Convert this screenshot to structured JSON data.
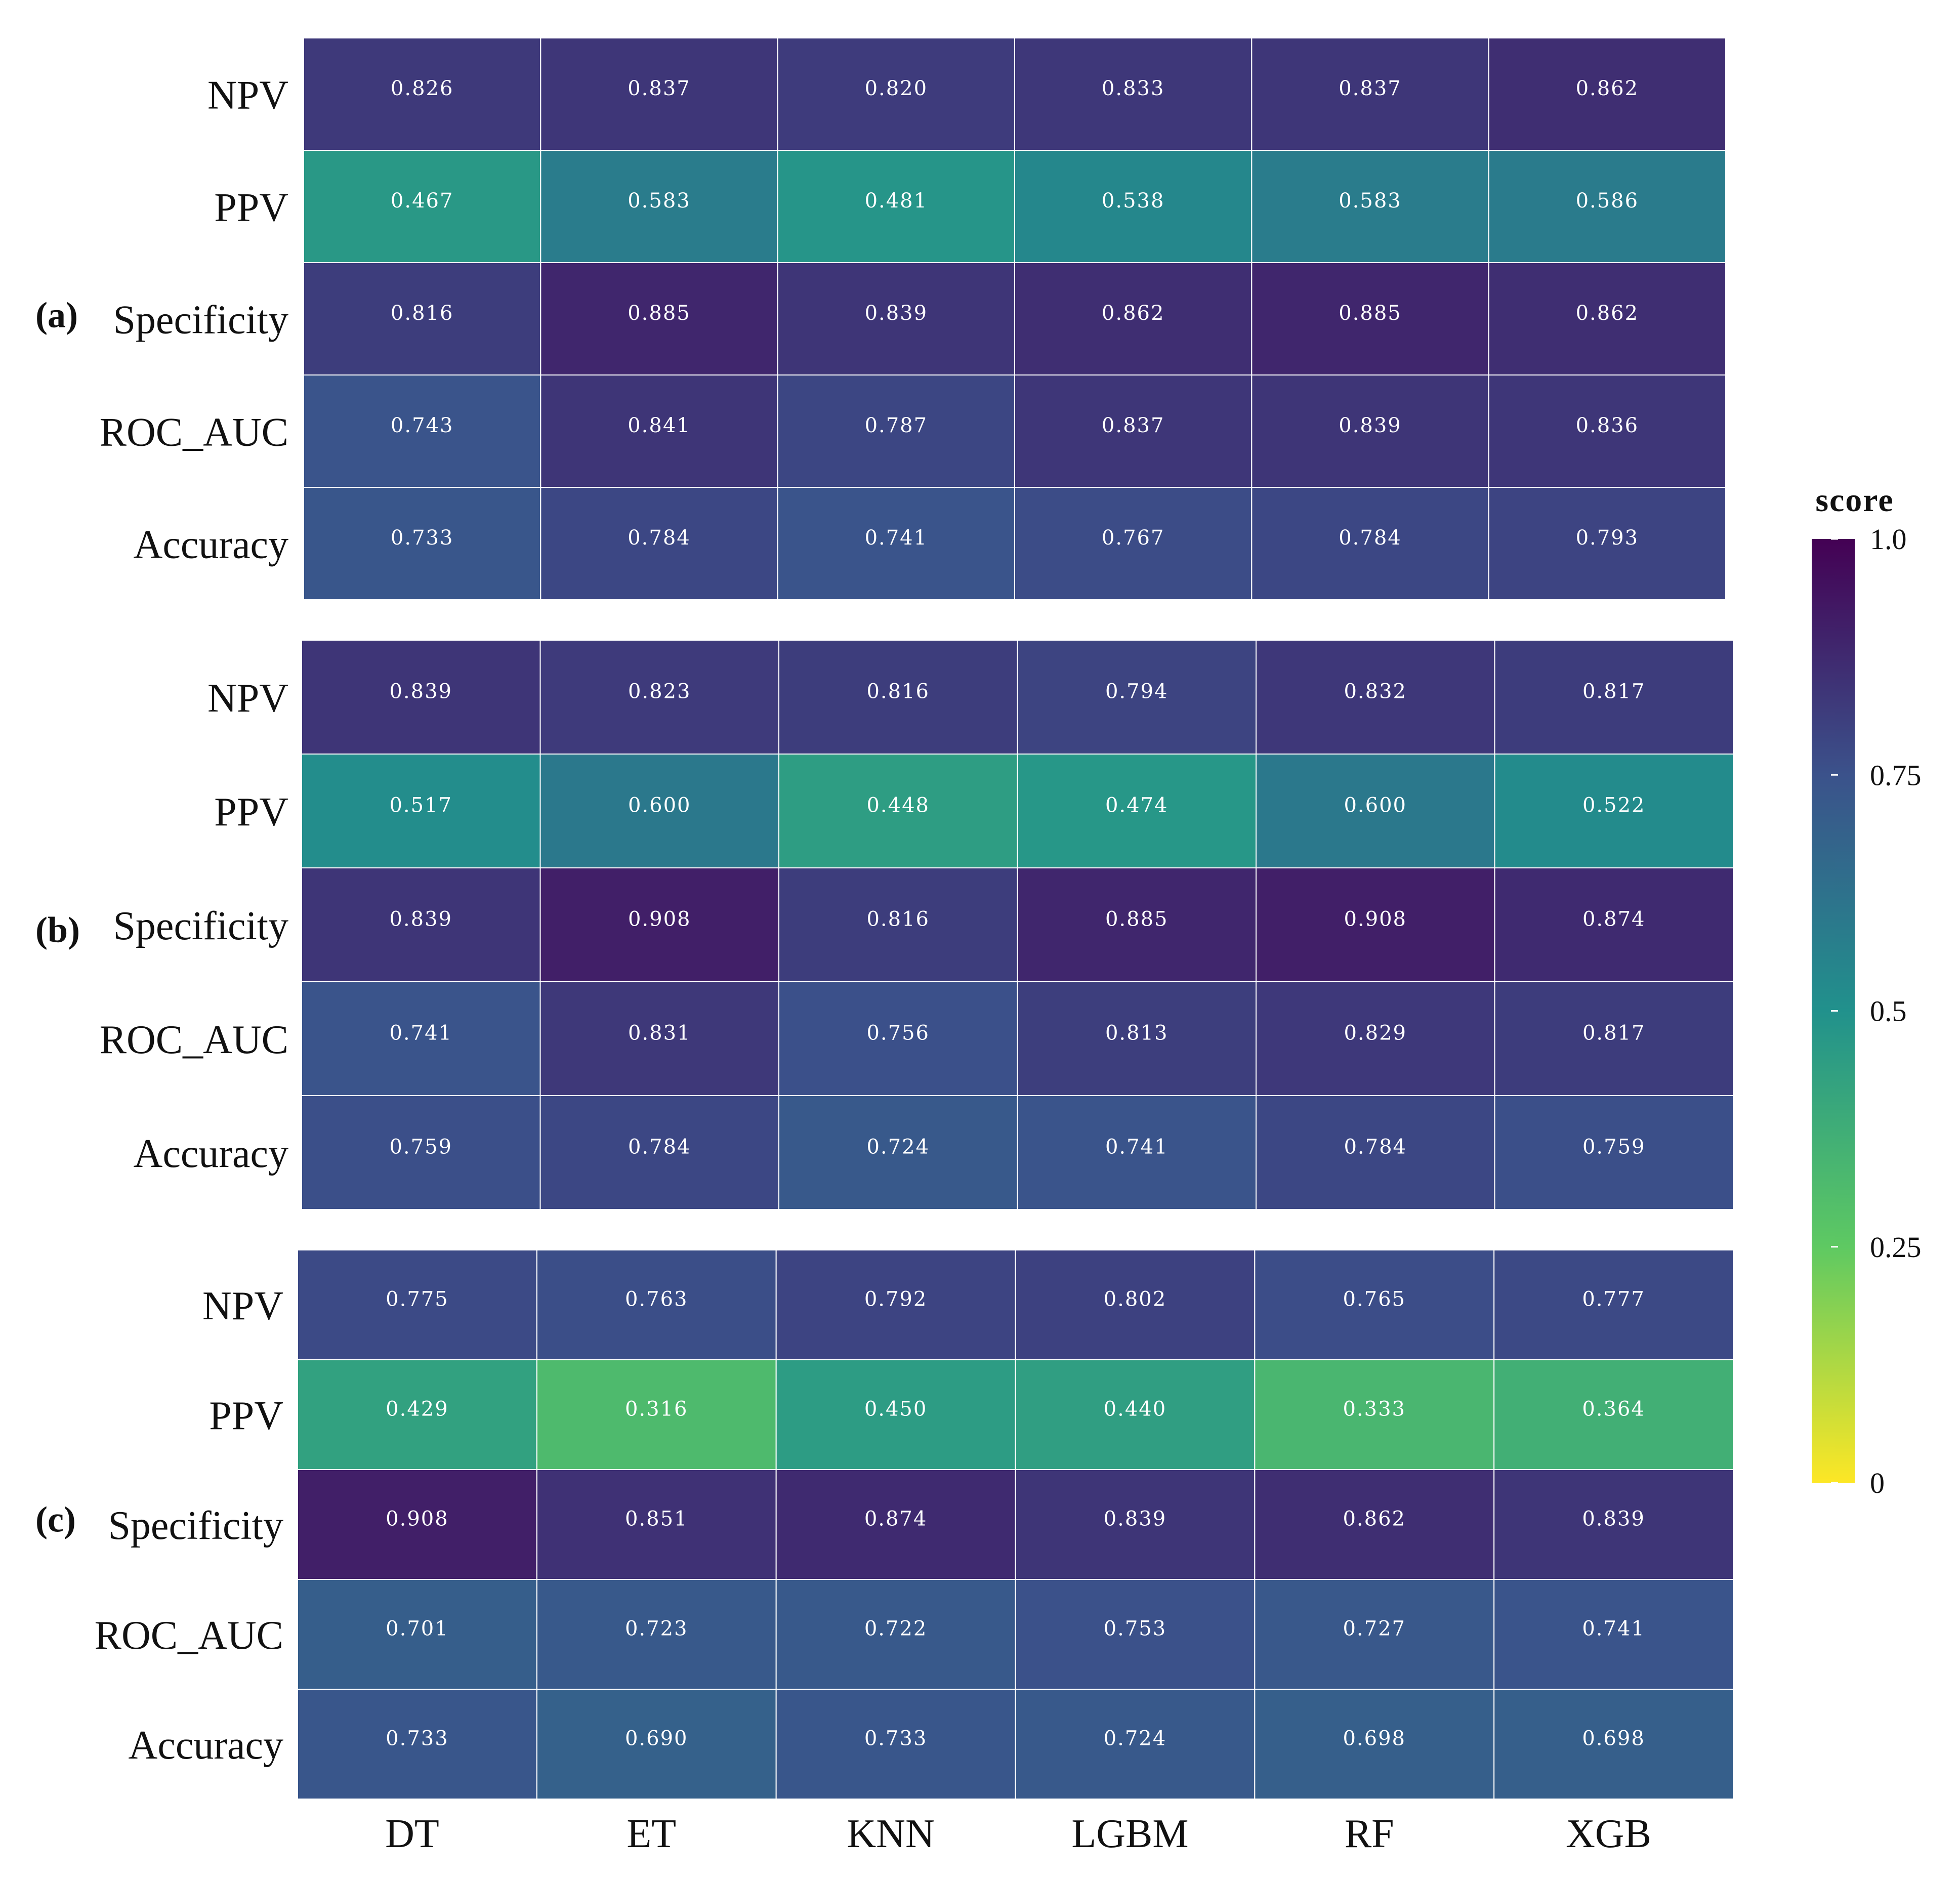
{
  "chart_data": {
    "type": "heatmap",
    "columns": [
      "DT",
      "ET",
      "KNN",
      "LGBM",
      "RF",
      "XGB"
    ],
    "rows": [
      "NPV",
      "PPV",
      "Specificity",
      "ROC_AUC",
      "Accuracy"
    ],
    "panels": [
      {
        "label": "(a)",
        "values": [
          [
            0.826,
            0.837,
            0.82,
            0.833,
            0.837,
            0.862
          ],
          [
            0.467,
            0.583,
            0.481,
            0.538,
            0.583,
            0.586
          ],
          [
            0.816,
            0.885,
            0.839,
            0.862,
            0.885,
            0.862
          ],
          [
            0.743,
            0.841,
            0.787,
            0.837,
            0.839,
            0.836
          ],
          [
            0.733,
            0.784,
            0.741,
            0.767,
            0.784,
            0.793
          ]
        ]
      },
      {
        "label": "(b)",
        "values": [
          [
            0.839,
            0.823,
            0.816,
            0.794,
            0.832,
            0.817
          ],
          [
            0.517,
            0.6,
            0.448,
            0.474,
            0.6,
            0.522
          ],
          [
            0.839,
            0.908,
            0.816,
            0.885,
            0.908,
            0.874
          ],
          [
            0.741,
            0.831,
            0.756,
            0.813,
            0.829,
            0.817
          ],
          [
            0.759,
            0.784,
            0.724,
            0.741,
            0.784,
            0.759
          ]
        ]
      },
      {
        "label": "(c)",
        "values": [
          [
            0.775,
            0.763,
            0.792,
            0.802,
            0.765,
            0.777
          ],
          [
            0.429,
            0.316,
            0.45,
            0.44,
            0.333,
            0.364
          ],
          [
            0.908,
            0.851,
            0.874,
            0.839,
            0.862,
            0.839
          ],
          [
            0.701,
            0.723,
            0.722,
            0.753,
            0.727,
            0.741
          ],
          [
            0.733,
            0.69,
            0.733,
            0.724,
            0.698,
            0.698
          ]
        ]
      }
    ],
    "colorbar": {
      "title": "score",
      "range": [
        0,
        1
      ],
      "ticks": [
        {
          "value": 1.0,
          "label": "1.0"
        },
        {
          "value": 0.75,
          "label": "0.75"
        },
        {
          "value": 0.5,
          "label": "0.5"
        },
        {
          "value": 0.25,
          "label": "0.25"
        },
        {
          "value": 0,
          "label": "0"
        }
      ],
      "colors": [
        "#fde725",
        "#5ec962",
        "#21918c",
        "#3b528b",
        "#440154"
      ]
    }
  }
}
